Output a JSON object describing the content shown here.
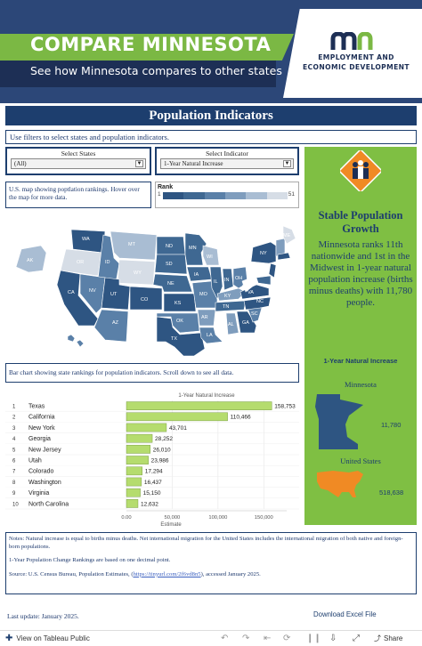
{
  "banner": {
    "title": "COMPARE MINNESOTA",
    "subtitle": "See how Minnesota compares to other states",
    "org_line1": "EMPLOYMENT AND",
    "org_line2": "ECONOMIC DEVELOPMENT"
  },
  "section_title": "Population Indicators",
  "instructions": "Use filters to select states and population indicators.",
  "filters": {
    "states_label": "Select States",
    "states_value": "(All)",
    "indicator_label": "Select Indicator",
    "indicator_value": "1-Year Natural Increase"
  },
  "map_note": "U.S. map showing poptlation rankings. Hover over the map for more data.",
  "rank_legend": {
    "title": "Rank",
    "min": "1",
    "max": "51",
    "colors": [
      "#2e5582",
      "#3f6892",
      "#5a80a8",
      "#7f9dbd",
      "#a9bdd3",
      "#d6dde6"
    ]
  },
  "map_states": [
    {
      "abbr": "WA"
    },
    {
      "abbr": "OR"
    },
    {
      "abbr": "CA"
    },
    {
      "abbr": "ID"
    },
    {
      "abbr": "NV"
    },
    {
      "abbr": "MT"
    },
    {
      "abbr": "WY"
    },
    {
      "abbr": "UT"
    },
    {
      "abbr": "AZ"
    },
    {
      "abbr": "CO"
    },
    {
      "abbr": "NM"
    },
    {
      "abbr": "ND"
    },
    {
      "abbr": "SD"
    },
    {
      "abbr": "NE"
    },
    {
      "abbr": "KS"
    },
    {
      "abbr": "OK"
    },
    {
      "abbr": "TX"
    },
    {
      "abbr": "MN"
    },
    {
      "abbr": "IA"
    },
    {
      "abbr": "MO"
    },
    {
      "abbr": "AR"
    },
    {
      "abbr": "LA"
    },
    {
      "abbr": "WI"
    },
    {
      "abbr": "IL"
    },
    {
      "abbr": "MI"
    },
    {
      "abbr": "IN"
    },
    {
      "abbr": "OH"
    },
    {
      "abbr": "KY"
    },
    {
      "abbr": "TN"
    },
    {
      "abbr": "MS"
    },
    {
      "abbr": "AL"
    },
    {
      "abbr": "GA"
    },
    {
      "abbr": "FL"
    },
    {
      "abbr": "SC"
    },
    {
      "abbr": "NC"
    },
    {
      "abbr": "VA"
    },
    {
      "abbr": "WV"
    },
    {
      "abbr": "PA"
    },
    {
      "abbr": "NY"
    },
    {
      "abbr": "ME"
    },
    {
      "abbr": "AK"
    },
    {
      "abbr": "HI"
    }
  ],
  "highlight": {
    "heading": "Stable Population Growth",
    "text": "Minnesota ranks 11th nationwide and 1st in the Midwest in 1-year natural population increase (births minus deaths) with 11,780 people.",
    "increase_title": "1-Year Natural Increase",
    "mn_label": "Minnesota",
    "mn_value": "11,780",
    "us_label": "United States",
    "us_value": "518,638"
  },
  "bar_note": "Bar chart showing state rankings for population indicators. Scroll down to see all data.",
  "chart_data": {
    "type": "bar",
    "title": "1-Year Natural Increase",
    "xlabel": "Estimate",
    "ranks": [
      "1",
      "2",
      "3",
      "4",
      "5",
      "6",
      "7",
      "8",
      "9",
      "10"
    ],
    "categories": [
      "Texas",
      "California",
      "New York",
      "Georgia",
      "New Jersey",
      "Utah",
      "Colorado",
      "Washington",
      "Virginia",
      "North Carolina"
    ],
    "values": [
      158753,
      110466,
      43701,
      28252,
      26010,
      23986,
      17294,
      16437,
      15150,
      12632
    ],
    "value_labels": [
      "158,753",
      "110,466",
      "43,701",
      "28,252",
      "26,010",
      "23,986",
      "17,294",
      "16,437",
      "15,150",
      "12,632"
    ],
    "xlim": [
      0,
      175000
    ],
    "xticks": [
      0,
      50000,
      100000,
      150000
    ],
    "xtick_labels": [
      "0.00",
      "50,000",
      "100,000",
      "150,000"
    ],
    "bar_color": "#b5dc6e"
  },
  "notes": {
    "line1": "Notes: Natural increase is equal to births minus deaths. Net international migration for the United States includes the international migration of both native and foreign-born populations.",
    "line2": "1-Year Population Change Rankings are based on one decimal point.",
    "line3_prefix": "Source: U.S. Census Bureau, Population Estimates, (",
    "line3_link": "https://tinyurl.com/2f6vd8n5",
    "line3_suffix": "), accessed January 2025."
  },
  "last_update": "Last update: January 2025.",
  "download_label": "Download Excel File",
  "footer": {
    "view_label": "View on Tableau Public",
    "share_label": "Share"
  }
}
